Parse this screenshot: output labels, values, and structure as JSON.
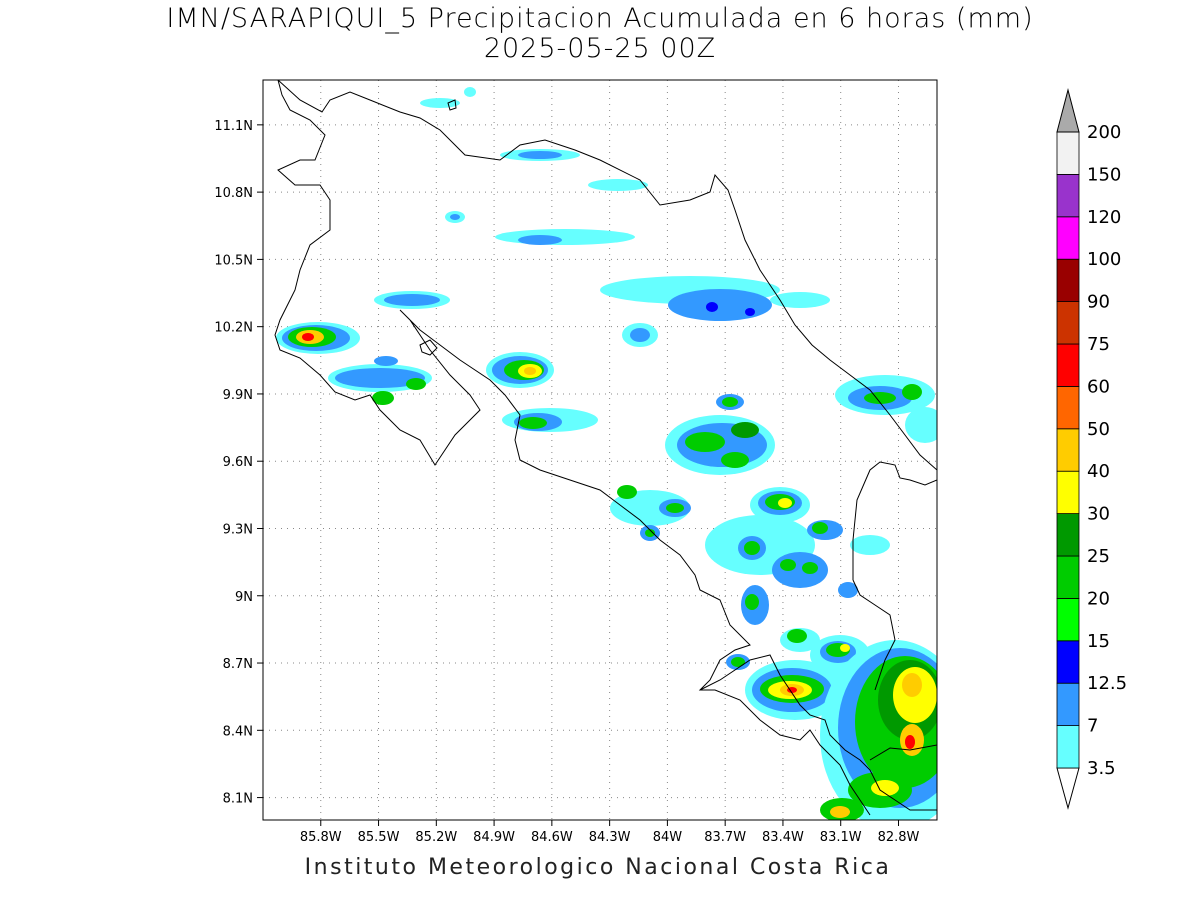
{
  "title": {
    "line1": "IMN/SARAPIQUI_5 Precipitacion Acumulada en 6 horas (mm)",
    "line2": "2025-05-25 00Z"
  },
  "footer": "Instituto Meteorologico Nacional Costa Rica",
  "map": {
    "lon_range": [
      -86.1,
      -82.6
    ],
    "lat_range": [
      8.0,
      11.3
    ],
    "lon_ticks": [
      {
        "value": -85.8,
        "label": "85.8W"
      },
      {
        "value": -85.5,
        "label": "85.5W"
      },
      {
        "value": -85.2,
        "label": "85.2W"
      },
      {
        "value": -84.9,
        "label": "84.9W"
      },
      {
        "value": -84.6,
        "label": "84.6W"
      },
      {
        "value": -84.3,
        "label": "84.3W"
      },
      {
        "value": -84.0,
        "label": "84W"
      },
      {
        "value": -83.7,
        "label": "83.7W"
      },
      {
        "value": -83.4,
        "label": "83.4W"
      },
      {
        "value": -83.1,
        "label": "83.1W"
      },
      {
        "value": -82.8,
        "label": "82.8W"
      }
    ],
    "lat_ticks": [
      {
        "value": 11.1,
        "label": "11.1N"
      },
      {
        "value": 10.8,
        "label": "10.8N"
      },
      {
        "value": 10.5,
        "label": "10.5N"
      },
      {
        "value": 10.2,
        "label": "10.2N"
      },
      {
        "value": 9.9,
        "label": "9.9N"
      },
      {
        "value": 9.6,
        "label": "9.6N"
      },
      {
        "value": 9.3,
        "label": "9.3N"
      },
      {
        "value": 9.0,
        "label": "9N"
      },
      {
        "value": 8.7,
        "label": "8.7N"
      },
      {
        "value": 8.4,
        "label": "8.4N"
      },
      {
        "value": 8.1,
        "label": "8.1N"
      }
    ],
    "grid": true
  },
  "colorbar": {
    "levels": [
      {
        "label": "3.5",
        "color": "#66ffff"
      },
      {
        "label": "7",
        "color": "#3399ff"
      },
      {
        "label": "12.5",
        "color": "#0000ff"
      },
      {
        "label": "15",
        "color": "#00ff00"
      },
      {
        "label": "20",
        "color": "#00cc00"
      },
      {
        "label": "25",
        "color": "#009900"
      },
      {
        "label": "30",
        "color": "#ffff00"
      },
      {
        "label": "40",
        "color": "#ffcc00"
      },
      {
        "label": "50",
        "color": "#ff6600"
      },
      {
        "label": "60",
        "color": "#ff0000"
      },
      {
        "label": "75",
        "color": "#cc3300"
      },
      {
        "label": "90",
        "color": "#990000"
      },
      {
        "label": "100",
        "color": "#ff00ff"
      },
      {
        "label": "120",
        "color": "#9933cc"
      },
      {
        "label": "150",
        "color": "#f2f2f2"
      },
      {
        "label": "200",
        "color": "#aaaaaa"
      }
    ]
  }
}
